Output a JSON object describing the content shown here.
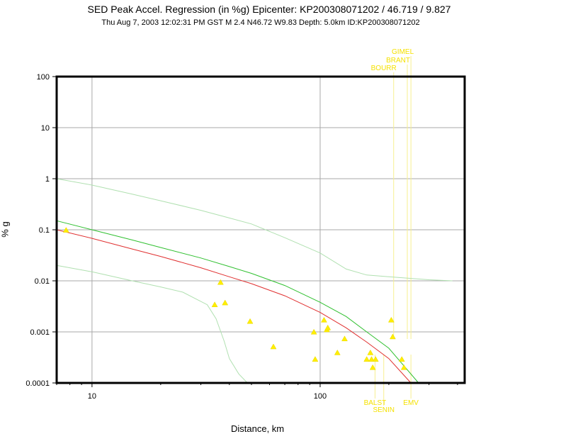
{
  "chart_data": {
    "type": "scatter",
    "title": "SED Peak Accel. Regression (in %g) Epicenter: KP200308071202 / 46.719 / 9.827",
    "subtitle": "Thu Aug  7, 2003 12:02:31 PM GST   M 2.4   N46.72 W9.83   Depth: 5.0km   ID:KP200308071202",
    "xlabel": "Distance, km",
    "ylabel": "% g",
    "x_scale": "log",
    "y_scale": "log",
    "xlim": [
      7,
      430
    ],
    "ylim": [
      0.0001,
      100
    ],
    "grid": true,
    "x_ticks": [
      {
        "value": 10,
        "label": "10"
      },
      {
        "value": 100,
        "label": "100"
      }
    ],
    "y_ticks": [
      {
        "value": 100,
        "label": "100"
      },
      {
        "value": 10,
        "label": "10"
      },
      {
        "value": 1,
        "label": "1"
      },
      {
        "value": 0.1,
        "label": "0.1"
      },
      {
        "value": 0.01,
        "label": "0.01"
      },
      {
        "value": 0.001,
        "label": "0.001"
      },
      {
        "value": 0.0001,
        "label": "0.0001"
      }
    ],
    "points": [
      {
        "x": 7.7,
        "y": 0.098
      },
      {
        "x": 34.5,
        "y": 0.0034
      },
      {
        "x": 36.6,
        "y": 0.0093
      },
      {
        "x": 38.3,
        "y": 0.0037
      },
      {
        "x": 49.3,
        "y": 0.0016
      },
      {
        "x": 62.4,
        "y": 0.00051
      },
      {
        "x": 93.9,
        "y": 0.00099
      },
      {
        "x": 95.1,
        "y": 0.00029
      },
      {
        "x": 104,
        "y": 0.0017
      },
      {
        "x": 107,
        "y": 0.0011
      },
      {
        "x": 108,
        "y": 0.0012
      },
      {
        "x": 119,
        "y": 0.00039
      },
      {
        "x": 128,
        "y": 0.00073
      },
      {
        "x": 160,
        "y": 0.00029
      },
      {
        "x": 166,
        "y": 0.00039
      },
      {
        "x": 168,
        "y": 0.00029
      },
      {
        "x": 170,
        "y": 0.0002
      },
      {
        "x": 175,
        "y": 0.00029
      },
      {
        "x": 205,
        "y": 0.0017
      },
      {
        "x": 208,
        "y": 0.0008
      },
      {
        "x": 228,
        "y": 0.00029
      },
      {
        "x": 233,
        "y": 0.0002
      }
    ],
    "series": [
      {
        "color": "#e03030",
        "points": [
          [
            7,
            0.1
          ],
          [
            10,
            0.068
          ],
          [
            15,
            0.042
          ],
          [
            20,
            0.03
          ],
          [
            30,
            0.018
          ],
          [
            40,
            0.012
          ],
          [
            50,
            0.0088
          ],
          [
            70,
            0.0051
          ],
          [
            100,
            0.0024
          ],
          [
            130,
            0.0012
          ],
          [
            160,
            0.00063
          ],
          [
            200,
            0.0003
          ],
          [
            250,
            0.0001
          ]
        ]
      },
      {
        "color": "#30c030",
        "points": [
          [
            7,
            0.15
          ],
          [
            10,
            0.1
          ],
          [
            15,
            0.063
          ],
          [
            20,
            0.045
          ],
          [
            30,
            0.028
          ],
          [
            40,
            0.019
          ],
          [
            50,
            0.014
          ],
          [
            70,
            0.0081
          ],
          [
            100,
            0.0038
          ],
          [
            130,
            0.002
          ],
          [
            160,
            0.001
          ],
          [
            200,
            0.00048
          ],
          [
            270,
            0.0001
          ]
        ]
      },
      {
        "color": "#b0e0b0",
        "points": [
          [
            7,
            1.0
          ],
          [
            10,
            0.75
          ],
          [
            15,
            0.5
          ],
          [
            20,
            0.37
          ],
          [
            30,
            0.24
          ],
          [
            40,
            0.17
          ],
          [
            50,
            0.13
          ],
          [
            70,
            0.07
          ],
          [
            100,
            0.035
          ],
          [
            130,
            0.017
          ],
          [
            160,
            0.013
          ],
          [
            200,
            0.012
          ],
          [
            300,
            0.0105
          ],
          [
            380,
            0.01
          ]
        ]
      },
      {
        "color": "#b0e0b0",
        "points": [
          [
            7,
            0.02
          ],
          [
            10,
            0.015
          ],
          [
            15,
            0.01
          ],
          [
            20,
            0.0076
          ],
          [
            25,
            0.006
          ],
          [
            32,
            0.0034
          ],
          [
            35,
            0.0018
          ],
          [
            38,
            0.00065
          ],
          [
            40,
            0.0003
          ],
          [
            44,
            0.00015
          ],
          [
            48,
            0.0001
          ]
        ]
      }
    ],
    "top_stations": [
      {
        "name": "GIMEL",
        "x": 250
      },
      {
        "name": "BRANT",
        "x": 241
      },
      {
        "name": "BOURR",
        "x": 210
      }
    ],
    "bottom_stations": [
      {
        "name": "BALST",
        "x": 174
      },
      {
        "name": "SENIN",
        "x": 190
      },
      {
        "name": "EMV",
        "x": 250
      }
    ]
  }
}
